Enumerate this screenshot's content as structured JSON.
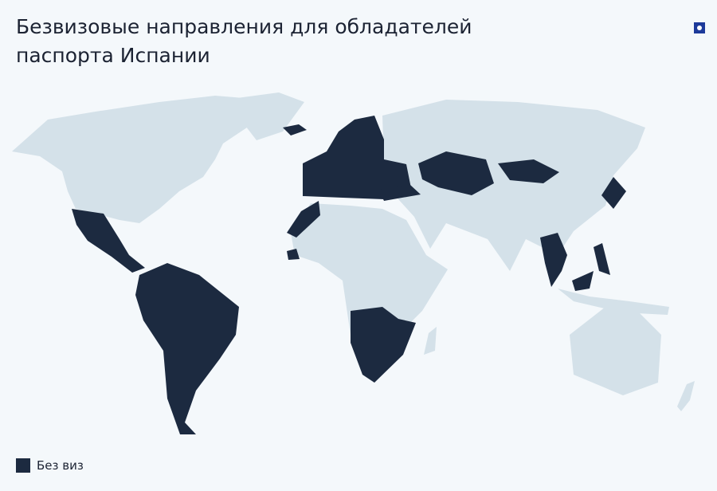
{
  "title": "Безвизовые направления для обладателей паспорта Испании",
  "logo": {
    "icon": "brand-logo-icon",
    "color": "#1d3a9a"
  },
  "colors": {
    "background": "#f4f8fb",
    "other": "#d4e1e9",
    "visa_free": "#1c2a40"
  },
  "legend": [
    {
      "label": "Без виз",
      "color": "#1c2a40"
    }
  ]
}
